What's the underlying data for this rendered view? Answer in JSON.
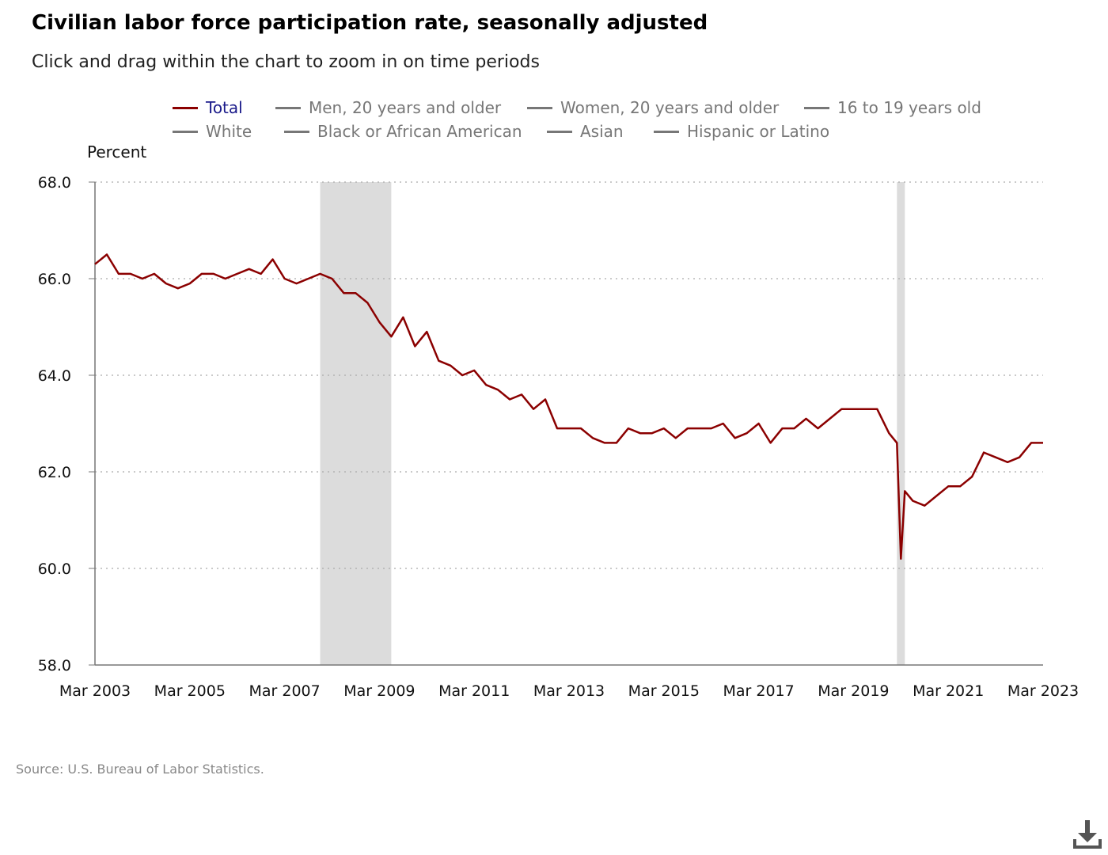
{
  "title": "Civilian labor force participation rate, seasonally adjusted",
  "subtitle": "Click and drag within the chart to zoom in on time periods",
  "source": "Source: U.S. Bureau of Labor Statistics.",
  "legend": [
    {
      "label": "Total",
      "active": true
    },
    {
      "label": "Men, 20 years and older",
      "active": false
    },
    {
      "label": "Women, 20 years and older",
      "active": false
    },
    {
      "label": "16 to 19 years old",
      "active": false
    },
    {
      "label": "White",
      "active": false
    },
    {
      "label": "Black or African American",
      "active": false
    },
    {
      "label": "Asian",
      "active": false
    },
    {
      "label": "Hispanic or Latino",
      "active": false
    }
  ],
  "colors": {
    "series": "#8b0000",
    "recession": "#dcdcdc",
    "inactive": "#777777",
    "active_text": "#1a1a8a"
  },
  "icons": {
    "download": "download-icon"
  },
  "chart_data": {
    "type": "line",
    "ylabel": "Percent",
    "xlabel": "",
    "ylim": [
      58.0,
      68.0
    ],
    "y_ticks": [
      "58.0",
      "60.0",
      "62.0",
      "64.0",
      "66.0",
      "68.0"
    ],
    "x_tick_labels": [
      "Mar 2003",
      "Mar 2005",
      "Mar 2007",
      "Mar 2009",
      "Mar 2011",
      "Mar 2013",
      "Mar 2015",
      "Mar 2017",
      "Mar 2019",
      "Mar 2021",
      "Mar 2023"
    ],
    "grid": "horizontal dotted",
    "recessions": [
      {
        "start": "2007-12",
        "end": "2009-06"
      },
      {
        "start": "2020-02",
        "end": "2020-04"
      }
    ],
    "series": [
      {
        "name": "Total",
        "x": [
          "2003-03",
          "2003-06",
          "2003-09",
          "2003-12",
          "2004-03",
          "2004-06",
          "2004-09",
          "2004-12",
          "2005-03",
          "2005-06",
          "2005-09",
          "2005-12",
          "2006-03",
          "2006-06",
          "2006-09",
          "2006-12",
          "2007-03",
          "2007-06",
          "2007-09",
          "2007-12",
          "2008-03",
          "2008-06",
          "2008-09",
          "2008-12",
          "2009-03",
          "2009-06",
          "2009-09",
          "2009-12",
          "2010-03",
          "2010-06",
          "2010-09",
          "2010-12",
          "2011-03",
          "2011-06",
          "2011-09",
          "2011-12",
          "2012-03",
          "2012-06",
          "2012-09",
          "2012-12",
          "2013-03",
          "2013-06",
          "2013-09",
          "2013-12",
          "2014-03",
          "2014-06",
          "2014-09",
          "2014-12",
          "2015-03",
          "2015-06",
          "2015-09",
          "2015-12",
          "2016-03",
          "2016-06",
          "2016-09",
          "2016-12",
          "2017-03",
          "2017-06",
          "2017-09",
          "2017-12",
          "2018-03",
          "2018-06",
          "2018-09",
          "2018-12",
          "2019-03",
          "2019-06",
          "2019-09",
          "2019-12",
          "2020-02",
          "2020-03",
          "2020-04",
          "2020-06",
          "2020-09",
          "2020-12",
          "2021-03",
          "2021-06",
          "2021-09",
          "2021-12",
          "2022-03",
          "2022-06",
          "2022-09",
          "2022-12",
          "2023-03"
        ],
        "values": [
          66.3,
          66.5,
          66.1,
          66.1,
          66.0,
          66.1,
          65.9,
          65.8,
          65.9,
          66.1,
          66.1,
          66.0,
          66.1,
          66.2,
          66.1,
          66.4,
          66.0,
          65.9,
          66.0,
          66.1,
          66.0,
          65.7,
          65.7,
          65.5,
          65.1,
          64.8,
          65.2,
          64.6,
          64.9,
          64.3,
          64.2,
          64.0,
          64.1,
          63.8,
          63.7,
          63.5,
          63.6,
          63.3,
          63.5,
          62.9,
          62.9,
          62.9,
          62.7,
          62.6,
          62.6,
          62.9,
          62.8,
          62.8,
          62.9,
          62.7,
          62.9,
          62.9,
          62.9,
          63.0,
          62.7,
          62.8,
          63.0,
          62.6,
          62.9,
          62.9,
          63.1,
          62.9,
          63.1,
          63.3,
          63.3,
          63.3,
          63.3,
          62.8,
          62.6,
          60.2,
          61.6,
          61.4,
          61.3,
          61.5,
          61.7,
          61.7,
          61.9,
          62.4,
          62.3,
          62.2,
          62.3,
          62.6,
          62.6
        ]
      }
    ]
  }
}
